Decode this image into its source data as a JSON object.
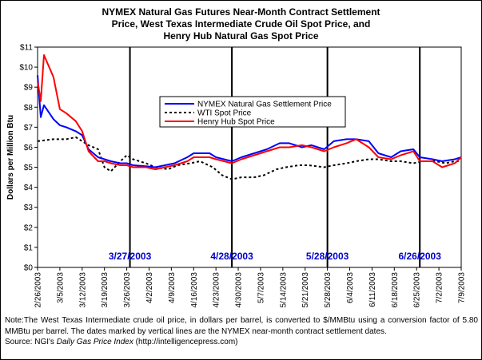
{
  "chart": {
    "title_lines": [
      "NYMEX Natural Gas Futures Near-Month Contract Settlement",
      "Price, West Texas Intermediate Crude Oil Spot Price, and",
      "Henry Hub Natural Gas Spot Price"
    ],
    "note": {
      "text": "Note:The West Texas Intermediate crude oil price, in dollars per barrel, is converted to $/MMBtu using a conversion factor of 5.80 MMBtu per barrel. The dates marked by vertical lines are the NYMEX near-month contract settlement dates.",
      "source_prefix": "Source: NGI's ",
      "source_italic": "Daily Gas Price Index",
      "source_suffix": " (http://intelligencepress.com)"
    }
  },
  "colors": {
    "nymex": "#0000ff",
    "wti": "#000000",
    "henry_hub": "#ff0000",
    "date_label": "#0000cc"
  },
  "chart_data": {
    "type": "line",
    "ylabel": "Dollars per Million Btu",
    "xlabel": "",
    "ylim": [
      0,
      11
    ],
    "yticks": [
      "$0",
      "$1",
      "$2",
      "$3",
      "$4",
      "$5",
      "$6",
      "$7",
      "$8",
      "$9",
      "$10",
      "$11"
    ],
    "xlim": [
      "2003-02-26",
      "2003-07-09"
    ],
    "xticks": [
      "2/26/2003",
      "3/5/2003",
      "3/12/2003",
      "3/19/2003",
      "3/26/2003",
      "4/2/2003",
      "4/9/2003",
      "4/16/2003",
      "4/23/2003",
      "4/30/2003",
      "5/7/2003",
      "5/14/2003",
      "5/21/2003",
      "5/28/2003",
      "6/4/2003",
      "6/11/2003",
      "6/18/2003",
      "6/25/2003",
      "7/2/2003",
      "7/9/2003"
    ],
    "grid": false,
    "legend": "upper-center",
    "settlement_lines": [
      {
        "date": "2003-03-27",
        "label": "3/27/2003"
      },
      {
        "date": "2003-04-28",
        "label": "4/28/2003"
      },
      {
        "date": "2003-05-28",
        "label": "5/28/2003"
      },
      {
        "date": "2003-06-26",
        "label": "6/26/2003"
      }
    ],
    "series": [
      {
        "name": "NYMEX Natural Gas Settlement Price",
        "style": "solid",
        "points": [
          [
            "2003-02-26",
            9.6
          ],
          [
            "2003-02-27",
            7.5
          ],
          [
            "2003-02-28",
            8.1
          ],
          [
            "2003-03-03",
            7.4
          ],
          [
            "2003-03-05",
            7.1
          ],
          [
            "2003-03-07",
            7.0
          ],
          [
            "2003-03-10",
            6.8
          ],
          [
            "2003-03-12",
            6.6
          ],
          [
            "2003-03-14",
            5.9
          ],
          [
            "2003-03-17",
            5.5
          ],
          [
            "2003-03-19",
            5.4
          ],
          [
            "2003-03-21",
            5.3
          ],
          [
            "2003-03-24",
            5.2
          ],
          [
            "2003-03-26",
            5.2
          ],
          [
            "2003-03-28",
            5.1
          ],
          [
            "2003-04-01",
            5.05
          ],
          [
            "2003-04-04",
            5.0
          ],
          [
            "2003-04-07",
            5.1
          ],
          [
            "2003-04-10",
            5.2
          ],
          [
            "2003-04-14",
            5.5
          ],
          [
            "2003-04-16",
            5.7
          ],
          [
            "2003-04-21",
            5.7
          ],
          [
            "2003-04-23",
            5.5
          ],
          [
            "2003-04-28",
            5.3
          ],
          [
            "2003-05-01",
            5.5
          ],
          [
            "2003-05-05",
            5.7
          ],
          [
            "2003-05-09",
            5.9
          ],
          [
            "2003-05-13",
            6.2
          ],
          [
            "2003-05-16",
            6.2
          ],
          [
            "2003-05-20",
            6.0
          ],
          [
            "2003-05-23",
            6.1
          ],
          [
            "2003-05-27",
            5.9
          ],
          [
            "2003-05-30",
            6.3
          ],
          [
            "2003-06-03",
            6.4
          ],
          [
            "2003-06-06",
            6.4
          ],
          [
            "2003-06-10",
            6.3
          ],
          [
            "2003-06-13",
            5.7
          ],
          [
            "2003-06-17",
            5.5
          ],
          [
            "2003-06-20",
            5.8
          ],
          [
            "2003-06-24",
            5.9
          ],
          [
            "2003-06-26",
            5.5
          ],
          [
            "2003-06-30",
            5.4
          ],
          [
            "2003-07-03",
            5.3
          ],
          [
            "2003-07-07",
            5.4
          ],
          [
            "2003-07-09",
            5.5
          ]
        ]
      },
      {
        "name": "WTI Spot Price",
        "style": "dotted",
        "points": [
          [
            "2003-02-26",
            6.3
          ],
          [
            "2003-03-03",
            6.4
          ],
          [
            "2003-03-07",
            6.4
          ],
          [
            "2003-03-10",
            6.5
          ],
          [
            "2003-03-12",
            6.3
          ],
          [
            "2003-03-14",
            6.1
          ],
          [
            "2003-03-17",
            5.9
          ],
          [
            "2003-03-19",
            5.0
          ],
          [
            "2003-03-21",
            4.8
          ],
          [
            "2003-03-24",
            5.3
          ],
          [
            "2003-03-26",
            5.6
          ],
          [
            "2003-03-28",
            5.4
          ],
          [
            "2003-04-01",
            5.2
          ],
          [
            "2003-04-04",
            5.0
          ],
          [
            "2003-04-08",
            4.9
          ],
          [
            "2003-04-11",
            5.1
          ],
          [
            "2003-04-15",
            5.2
          ],
          [
            "2003-04-18",
            5.3
          ],
          [
            "2003-04-22",
            5.0
          ],
          [
            "2003-04-25",
            4.6
          ],
          [
            "2003-04-28",
            4.4
          ],
          [
            "2003-05-01",
            4.5
          ],
          [
            "2003-05-05",
            4.5
          ],
          [
            "2003-05-08",
            4.6
          ],
          [
            "2003-05-12",
            4.9
          ],
          [
            "2003-05-15",
            5.0
          ],
          [
            "2003-05-19",
            5.1
          ],
          [
            "2003-05-22",
            5.1
          ],
          [
            "2003-05-27",
            5.0
          ],
          [
            "2003-05-30",
            5.1
          ],
          [
            "2003-06-03",
            5.2
          ],
          [
            "2003-06-06",
            5.3
          ],
          [
            "2003-06-10",
            5.4
          ],
          [
            "2003-06-13",
            5.4
          ],
          [
            "2003-06-17",
            5.3
          ],
          [
            "2003-06-20",
            5.3
          ],
          [
            "2003-06-24",
            5.2
          ],
          [
            "2003-06-27",
            5.3
          ],
          [
            "2003-07-01",
            5.3
          ],
          [
            "2003-07-04",
            5.2
          ],
          [
            "2003-07-07",
            5.3
          ],
          [
            "2003-07-09",
            5.3
          ]
        ]
      },
      {
        "name": "Henry Hub Spot Price",
        "style": "solid",
        "points": [
          [
            "2003-02-26",
            9.3
          ],
          [
            "2003-02-27",
            8.3
          ],
          [
            "2003-02-28",
            10.6
          ],
          [
            "2003-03-03",
            9.5
          ],
          [
            "2003-03-05",
            7.9
          ],
          [
            "2003-03-07",
            7.7
          ],
          [
            "2003-03-10",
            7.3
          ],
          [
            "2003-03-12",
            6.8
          ],
          [
            "2003-03-14",
            5.8
          ],
          [
            "2003-03-17",
            5.3
          ],
          [
            "2003-03-19",
            5.3
          ],
          [
            "2003-03-21",
            5.2
          ],
          [
            "2003-03-24",
            5.1
          ],
          [
            "2003-03-26",
            5.1
          ],
          [
            "2003-03-28",
            5.0
          ],
          [
            "2003-04-01",
            5.0
          ],
          [
            "2003-04-04",
            4.9
          ],
          [
            "2003-04-07",
            5.0
          ],
          [
            "2003-04-10",
            5.1
          ],
          [
            "2003-04-14",
            5.3
          ],
          [
            "2003-04-16",
            5.5
          ],
          [
            "2003-04-21",
            5.5
          ],
          [
            "2003-04-23",
            5.4
          ],
          [
            "2003-04-28",
            5.2
          ],
          [
            "2003-05-01",
            5.4
          ],
          [
            "2003-05-05",
            5.6
          ],
          [
            "2003-05-09",
            5.8
          ],
          [
            "2003-05-13",
            6.0
          ],
          [
            "2003-05-16",
            6.0
          ],
          [
            "2003-05-20",
            6.1
          ],
          [
            "2003-05-23",
            6.0
          ],
          [
            "2003-05-27",
            5.8
          ],
          [
            "2003-05-30",
            6.0
          ],
          [
            "2003-06-03",
            6.2
          ],
          [
            "2003-06-06",
            6.4
          ],
          [
            "2003-06-10",
            6.0
          ],
          [
            "2003-06-13",
            5.5
          ],
          [
            "2003-06-17",
            5.4
          ],
          [
            "2003-06-20",
            5.6
          ],
          [
            "2003-06-24",
            5.8
          ],
          [
            "2003-06-26",
            5.3
          ],
          [
            "2003-06-30",
            5.3
          ],
          [
            "2003-07-03",
            5.0
          ],
          [
            "2003-07-07",
            5.2
          ],
          [
            "2003-07-09",
            5.5
          ]
        ]
      }
    ]
  }
}
